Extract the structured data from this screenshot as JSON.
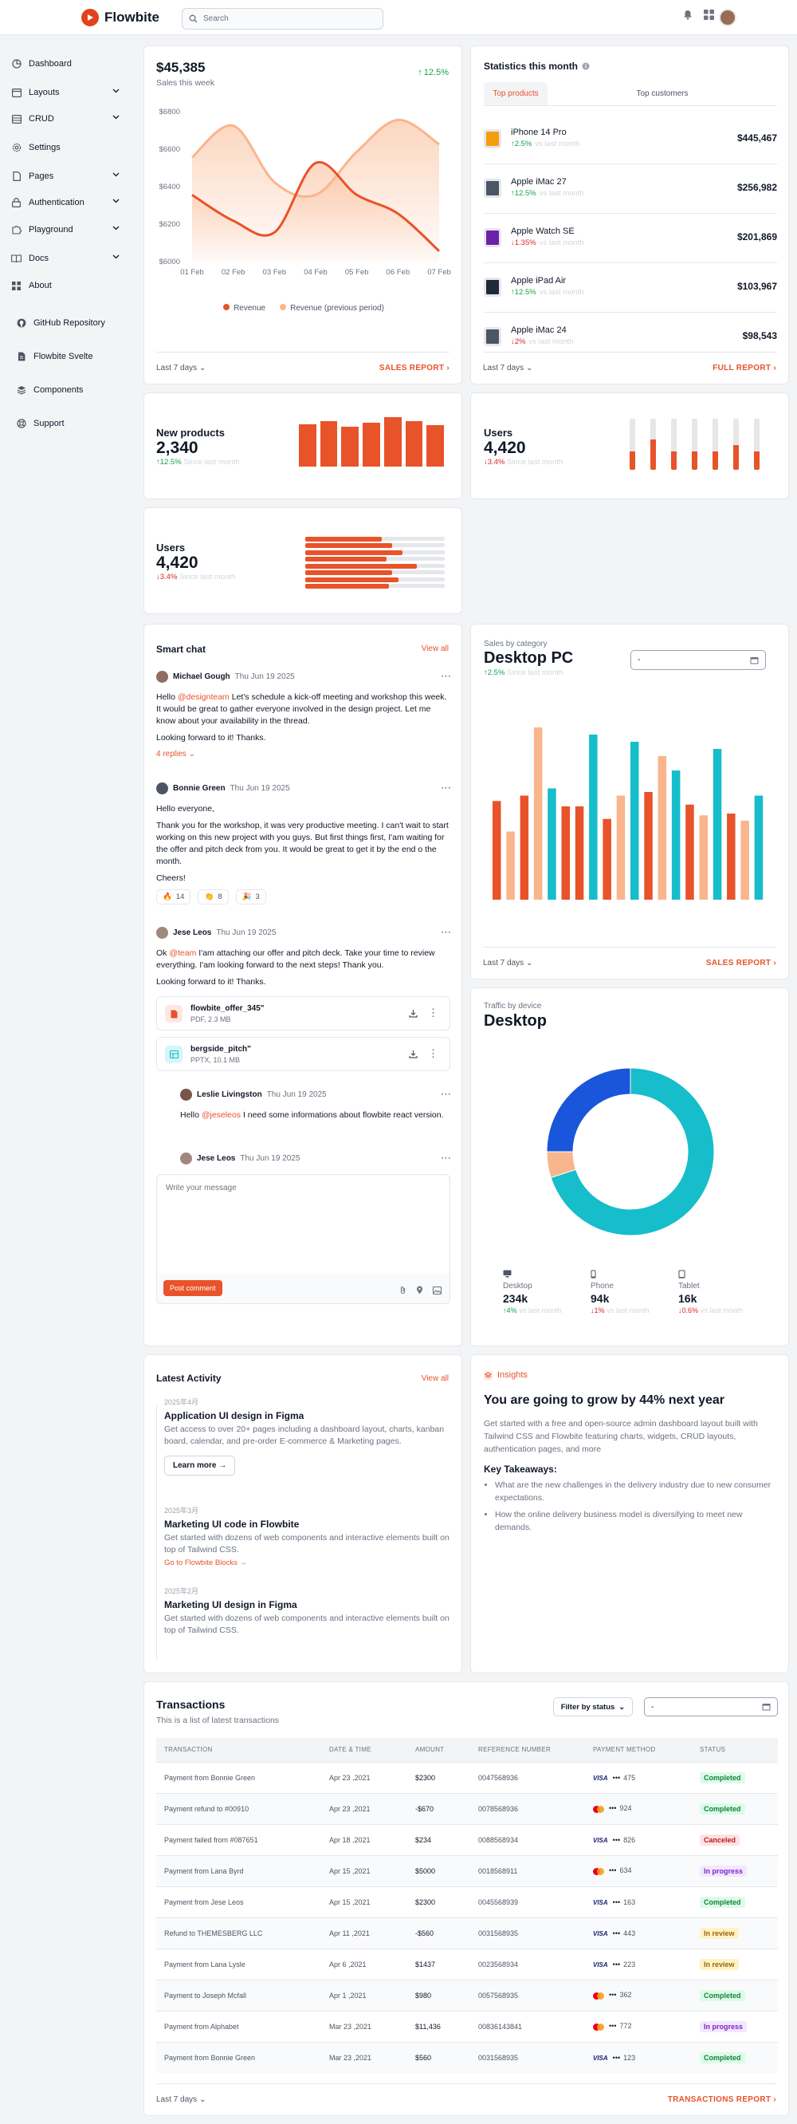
{
  "app": {
    "name": "Flowbite"
  },
  "search": {
    "placeholder": "Search"
  },
  "sidebar": {
    "items": [
      {
        "label": "Dashboard"
      },
      {
        "label": "Layouts"
      },
      {
        "label": "CRUD"
      },
      {
        "label": "Settings"
      },
      {
        "label": "Pages"
      },
      {
        "label": "Authentication"
      },
      {
        "label": "Playground"
      },
      {
        "label": "Docs"
      },
      {
        "label": "About"
      }
    ],
    "secondary": [
      {
        "label": "GitHub Repository"
      },
      {
        "label": "Flowbite Svelte"
      },
      {
        "label": "Components"
      },
      {
        "label": "Support"
      }
    ]
  },
  "sales": {
    "value": "$45,385",
    "subtitle": "Sales this week",
    "change": "12.5%",
    "footer_range": "Last 7 days",
    "footer_link": "SALES REPORT"
  },
  "chart_data": {
    "type": "line",
    "categories": [
      "01 Feb",
      "02 Feb",
      "03 Feb",
      "04 Feb",
      "05 Feb",
      "06 Feb",
      "07 Feb"
    ],
    "ylim": [
      6000,
      6800
    ],
    "yticks": [
      "$6800",
      "$6600",
      "$6400",
      "$6200",
      "$6000"
    ],
    "series": [
      {
        "name": "Revenue",
        "values": [
          6356,
          6218,
          6156,
          6526,
          6356,
          6256,
          6056
        ],
        "color": "#e8532a"
      },
      {
        "name": "Revenue (previous period)",
        "values": [
          6556,
          6725,
          6424,
          6356,
          6586,
          6756,
          6626
        ],
        "color": "#f9b58b"
      }
    ]
  },
  "stats": {
    "title": "Statistics this month",
    "tabs": [
      "Top products",
      "Top customers"
    ],
    "products": [
      {
        "name": "iPhone 14 Pro",
        "change": "2.5%",
        "dir": "up",
        "since": "vs last month",
        "value": "$445,467"
      },
      {
        "name": "Apple iMac 27",
        "change": "12.5%",
        "dir": "up",
        "since": "vs last month",
        "value": "$256,982"
      },
      {
        "name": "Apple Watch SE",
        "change": "1.35%",
        "dir": "down",
        "since": "vs last month",
        "value": "$201,869"
      },
      {
        "name": "Apple iPad Air",
        "change": "12.5%",
        "dir": "up",
        "since": "vs last month",
        "value": "$103,967"
      },
      {
        "name": "Apple iMac 24",
        "change": "2%",
        "dir": "down",
        "since": "vs last month",
        "value": "$98,543"
      }
    ],
    "footer_range": "Last 7 days",
    "footer_link": "FULL REPORT"
  },
  "new_products": {
    "title": "New products",
    "value": "2,340",
    "change": "12.5%",
    "since": "Since last month",
    "bars": [
      0.62,
      0.66,
      0.58,
      0.64,
      0.72,
      0.66,
      0.6
    ]
  },
  "users1": {
    "title": "Users",
    "value": "4,420",
    "change": "3.4%",
    "since": "Since last month",
    "bars": [
      0.36,
      0.6,
      0.36,
      0.36,
      0.36,
      0.48,
      0.36
    ]
  },
  "users2": {
    "title": "Users",
    "value": "4,420",
    "change": "3.4%",
    "since": "Since last month",
    "bars": [
      0.55,
      0.62,
      0.7,
      0.58,
      0.8,
      0.62,
      0.67,
      0.6
    ]
  },
  "chat": {
    "title": "Smart chat",
    "view_all": "View all",
    "m1": {
      "author": "Michael Gough",
      "time": "Thu Jun 19 2025",
      "pre": "Hello ",
      "mention": "@designteam",
      "text": " Let's schedule a kick-off meeting and workshop this week. It would be great to gather everyone involved in the design project. Let me know about your availability in the thread.",
      "text2": "Looking forward to it! Thanks.",
      "replies": "4 replies"
    },
    "m2": {
      "author": "Bonnie Green",
      "time": "Thu Jun 19 2025",
      "text1": "Hello everyone,",
      "text2": "Thank you for the workshop, it was very productive meeting. I can't wait to start working on this new project with you guys. But first things first, I'am waiting for the offer and pitch deck from you. It would be great to get it by the end o the month.",
      "text3": "Cheers!",
      "reactions": [
        {
          "emoji": "🔥",
          "count": "14"
        },
        {
          "emoji": "👏",
          "count": "8"
        },
        {
          "emoji": "🎉",
          "count": "3"
        }
      ]
    },
    "m3": {
      "author": "Jese Leos",
      "time": "Thu Jun 19 2025",
      "pre": "Ok ",
      "mention": "@team",
      "text": " I'am attaching our offer and pitch deck. Take your time to review everything. I'am looking forward to the next steps! Thank you.",
      "text2": "Looking forward to it! Thanks."
    },
    "files": [
      {
        "name": "flowbite_offer_345\"",
        "meta": "PDF, 2.3 MB"
      },
      {
        "name": "bergside_pitch\"",
        "meta": "PPTX, 10.1 MB"
      }
    ],
    "m4": {
      "author": "Leslie Livingston",
      "time": "Thu Jun 19 2025",
      "pre": "Hello ",
      "mention": "@jeseleos",
      "text": " I need some informations about flowbite react version."
    },
    "m5": {
      "author": "Jese Leos",
      "time": "Thu Jun 19 2025"
    },
    "input_placeholder": "Write your message",
    "post_button": "Post comment"
  },
  "category": {
    "label": "Sales by category",
    "title": "Desktop PC",
    "change": "2.5%",
    "since": "Since last month",
    "select_value": "-",
    "groups": [
      [
        0.55,
        0.38,
        0.0
      ],
      [
        0.0,
        0.0,
        0.0
      ],
      [
        0.58,
        0.95,
        0.62
      ],
      [
        0.52,
        0.54,
        0.52
      ],
      [
        0.45,
        0.58,
        0.88
      ],
      [
        0.6,
        0.8,
        0.72
      ],
      [
        0.52,
        0.48,
        0.82
      ],
      [
        0.48,
        0.45,
        0.58
      ]
    ],
    "footer_range": "Last 7 days",
    "footer_link": "SALES REPORT"
  },
  "traffic": {
    "label": "Traffic by device",
    "title": "Desktop",
    "chart_data": {
      "type": "pie",
      "values": [
        70,
        5,
        25
      ],
      "colors": [
        "#16bdca",
        "#f9b58b",
        "#1a56db"
      ]
    },
    "devices": [
      {
        "name": "Desktop",
        "value": "234k",
        "change": "4%",
        "dir": "up",
        "since": "vs last month"
      },
      {
        "name": "Phone",
        "value": "94k",
        "change": "1%",
        "dir": "down",
        "since": "vs last month"
      },
      {
        "name": "Tablet",
        "value": "16k",
        "change": "0.6%",
        "dir": "down",
        "since": "vs last month"
      }
    ]
  },
  "activity": {
    "title": "Latest Activity",
    "view_all": "View all",
    "items": [
      {
        "date": "2025年4月",
        "title": "Application UI design in Figma",
        "desc": "Get access to over 20+ pages including a dashboard layout, charts, kanban board, calendar, and pre-order E-commerce & Marketing pages.",
        "cta": "Learn more"
      },
      {
        "date": "2025年3月",
        "title": "Marketing UI code in Flowbite",
        "desc": "Get started with dozens of web components and interactive elements built on top of Tailwind CSS.",
        "cta": "Go to Flowbite Blocks"
      },
      {
        "date": "2025年2月",
        "title": "Marketing UI design in Figma",
        "desc": "Get started with dozens of web components and interactive elements built on top of Tailwind CSS."
      }
    ]
  },
  "insights": {
    "label": "Insights",
    "title": "You are going to grow by 44% next year",
    "desc": "Get started with a free and open-source admin dashboard layout built with Tailwind CSS and Flowbite featuring charts, widgets, CRUD layouts, authentication pages, and more",
    "takeaways_title": "Key Takeaways:",
    "takeaways": [
      "What are the new challenges in the delivery industry due to new consumer expectations.",
      "How the online delivery business model is diversifying to meet new demands."
    ]
  },
  "transactions": {
    "title": "Transactions",
    "subtitle": "This is a list of latest transactions",
    "filter": "Filter by status",
    "date_value": "-",
    "headers": [
      "TRANSACTION",
      "DATE & TIME",
      "AMOUNT",
      "REFERENCE NUMBER",
      "PAYMENT METHOD",
      "STATUS"
    ],
    "rows": [
      {
        "tx": "Payment from Bonnie Green",
        "date": "Apr 23 ,2021",
        "amount": "$2300",
        "ref": "0047568936",
        "card": "visa",
        "last4": "475",
        "status": "Completed"
      },
      {
        "tx": "Payment refund to #00910",
        "date": "Apr 23 ,2021",
        "amount": "-$670",
        "ref": "0078568936",
        "card": "mc",
        "last4": "924",
        "status": "Completed"
      },
      {
        "tx": "Payment failed from #087651",
        "date": "Apr 18 ,2021",
        "amount": "$234",
        "ref": "0088568934",
        "card": "visa",
        "last4": "826",
        "status": "Canceled"
      },
      {
        "tx": "Payment from Lana Byrd",
        "date": "Apr 15 ,2021",
        "amount": "$5000",
        "ref": "0018568911",
        "card": "mc",
        "last4": "634",
        "status": "In progress"
      },
      {
        "tx": "Payment from Jese Leos",
        "date": "Apr 15 ,2021",
        "amount": "$2300",
        "ref": "0045568939",
        "card": "visa",
        "last4": "163",
        "status": "Completed"
      },
      {
        "tx": "Refund to THEMESBERG LLC",
        "date": "Apr 11 ,2021",
        "amount": "-$560",
        "ref": "0031568935",
        "card": "visa",
        "last4": "443",
        "status": "In review"
      },
      {
        "tx": "Payment from Lana Lysle",
        "date": "Apr 6 ,2021",
        "amount": "$1437",
        "ref": "0023568934",
        "card": "visa",
        "last4": "223",
        "status": "In review"
      },
      {
        "tx": "Payment to Joseph Mcfall",
        "date": "Apr 1 ,2021",
        "amount": "$980",
        "ref": "0057568935",
        "card": "mc",
        "last4": "362",
        "status": "Completed"
      },
      {
        "tx": "Payment from Alphabet",
        "date": "Mar 23 ,2021",
        "amount": "$11,436",
        "ref": "00836143841",
        "card": "mc",
        "last4": "772",
        "status": "In progress"
      },
      {
        "tx": "Payment from Bonnie Green",
        "date": "Mar 23 ,2021",
        "amount": "$560",
        "ref": "0031568935",
        "card": "visa",
        "last4": "123",
        "status": "Completed"
      }
    ],
    "footer_range": "Last 7 days",
    "footer_link": "TRANSACTIONS REPORT"
  },
  "card_labels": {
    "visa": "VISA",
    "dots": "•••"
  }
}
